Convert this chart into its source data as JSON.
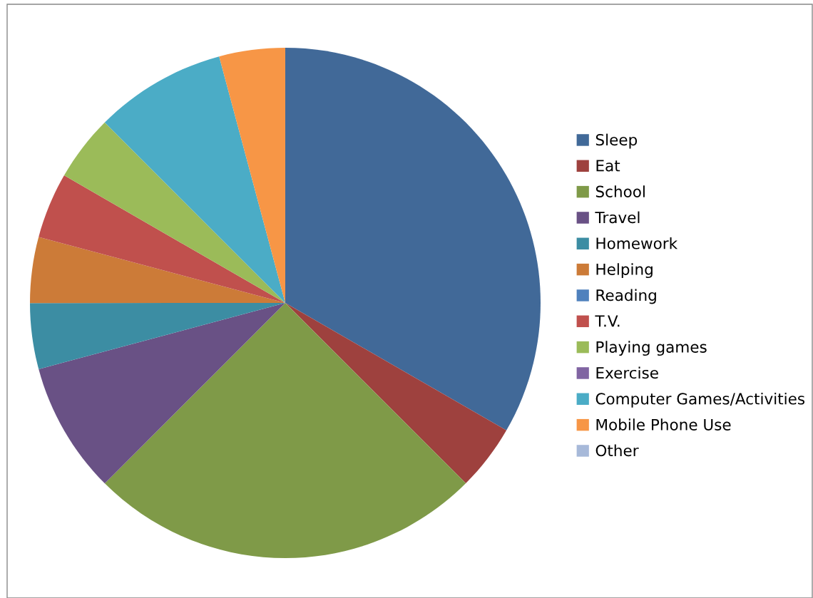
{
  "chart_data": {
    "type": "pie",
    "categories": [
      "Sleep",
      "Eat",
      "School",
      "Travel",
      "Homework",
      "Helping",
      "Reading",
      "T.V.",
      "Playing games",
      "Exercise",
      "Computer Games/Activities",
      "Mobile Phone Use",
      "Other"
    ],
    "values": [
      33.33,
      4.17,
      25,
      8.33,
      4.17,
      4.17,
      0,
      4.17,
      4.17,
      0,
      8.33,
      4.17,
      0
    ],
    "colors": [
      "#416998",
      "#9e413e",
      "#7f9a48",
      "#695185",
      "#3c8da3",
      "#cc7b38",
      "#4f81bd",
      "#c0504d",
      "#9bbb59",
      "#8064a2",
      "#4bacc6",
      "#f79646",
      "#a7b9d9"
    ],
    "legend": "right"
  }
}
